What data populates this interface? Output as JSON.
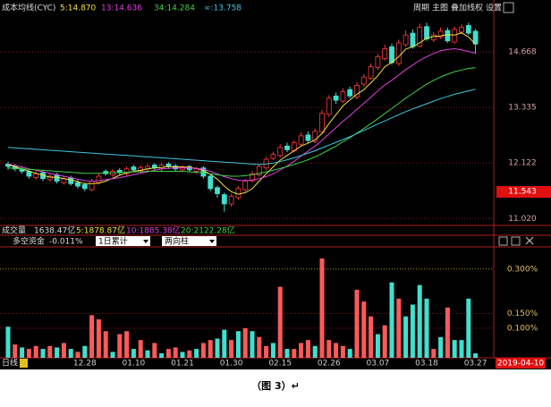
{
  "chart_data": [
    {
      "type": "candlestick",
      "title": "成本均线(CYC)",
      "log": true,
      "ylim": [
        10.89,
        15.89
      ],
      "yticks": [
        {
          "value": 11.02,
          "label": "11.020"
        },
        12.122,
        13.335,
        14.668
      ],
      "last_price": 11.543,
      "up_color": "#ff3b3b",
      "down_color": "#3fdfd0",
      "open": [
        12.1,
        12.05,
        12.0,
        11.95,
        11.82,
        11.92,
        11.78,
        11.88,
        11.72,
        11.82,
        11.72,
        11.68,
        11.58,
        11.72,
        11.95,
        11.88,
        11.97,
        11.9,
        12.04,
        11.96,
        12.0,
        12.08,
        12.0,
        12.1,
        12.06,
        11.98,
        12.05,
        11.95,
        12.02,
        11.85,
        11.62,
        11.48,
        11.3,
        11.42,
        11.58,
        11.76,
        11.88,
        12.02,
        12.22,
        12.28,
        12.48,
        12.38,
        12.52,
        12.72,
        12.58,
        12.78,
        13.18,
        13.6,
        13.48,
        13.75,
        13.58,
        13.88,
        14.02,
        14.28,
        14.5,
        14.8,
        14.38,
        14.85,
        15.15,
        14.82,
        15.32,
        14.98,
        15.05,
        15.22,
        14.92,
        15.18,
        15.35,
        15.2
      ],
      "high": [
        12.15,
        12.1,
        12.05,
        11.98,
        11.95,
        11.96,
        11.9,
        11.92,
        11.85,
        11.86,
        11.78,
        11.72,
        11.8,
        11.9,
        11.99,
        12.0,
        12.02,
        12.05,
        12.08,
        12.08,
        12.1,
        12.12,
        12.12,
        12.14,
        12.1,
        12.08,
        12.08,
        12.04,
        12.06,
        11.9,
        11.66,
        11.52,
        11.5,
        11.65,
        11.8,
        11.95,
        12.1,
        12.25,
        12.36,
        12.52,
        12.55,
        12.6,
        12.78,
        12.8,
        12.86,
        13.28,
        13.62,
        13.68,
        13.78,
        13.82,
        13.92,
        14.12,
        14.38,
        14.62,
        14.85,
        14.88,
        14.98,
        15.22,
        15.25,
        15.4,
        15.42,
        15.18,
        15.3,
        15.3,
        15.32,
        15.38,
        15.42,
        15.26
      ],
      "low": [
        11.98,
        11.95,
        11.9,
        11.8,
        11.78,
        11.75,
        11.74,
        11.7,
        11.68,
        11.66,
        11.6,
        11.55,
        11.55,
        11.68,
        11.86,
        11.84,
        11.88,
        11.86,
        11.94,
        11.92,
        11.96,
        11.98,
        11.96,
        12.0,
        11.96,
        11.94,
        11.94,
        11.9,
        11.8,
        11.55,
        11.42,
        11.15,
        11.25,
        11.38,
        11.54,
        11.72,
        11.84,
        11.98,
        12.18,
        12.24,
        12.35,
        12.34,
        12.48,
        12.55,
        12.54,
        12.74,
        13.12,
        13.42,
        13.44,
        13.55,
        13.52,
        13.82,
        13.98,
        14.22,
        14.45,
        14.35,
        14.32,
        14.8,
        14.75,
        14.78,
        14.95,
        14.92,
        15.0,
        14.9,
        14.88,
        15.12,
        15.1,
        14.62
      ],
      "close": [
        12.05,
        12.0,
        11.95,
        11.85,
        11.9,
        11.8,
        11.85,
        11.75,
        11.8,
        11.7,
        11.65,
        11.6,
        11.75,
        11.85,
        11.9,
        11.95,
        11.92,
        12.0,
        11.98,
        12.03,
        12.05,
        12.02,
        12.08,
        12.05,
        12.0,
        12.04,
        11.98,
        12.0,
        11.85,
        11.6,
        11.5,
        11.3,
        11.45,
        11.6,
        11.75,
        11.9,
        12.05,
        12.2,
        12.3,
        12.45,
        12.4,
        12.55,
        12.7,
        12.6,
        12.8,
        13.2,
        13.55,
        13.5,
        13.7,
        13.6,
        13.85,
        14.05,
        14.3,
        14.55,
        14.75,
        14.4,
        14.9,
        15.1,
        14.8,
        15.3,
        15.0,
        15.1,
        15.2,
        14.95,
        15.25,
        15.3,
        15.15,
        14.87
      ],
      "series": [
        {
          "name": "5:14.870",
          "color": "#f0e040",
          "values": [
            12.08,
            12.05,
            12.0,
            11.95,
            11.91,
            11.87,
            11.83,
            11.83,
            11.8,
            11.78,
            11.74,
            11.7,
            11.7,
            11.71,
            11.75,
            11.81,
            11.87,
            11.92,
            11.95,
            11.97,
            12.0,
            12.02,
            12.03,
            12.05,
            12.04,
            12.04,
            12.03,
            12.01,
            11.97,
            11.89,
            11.79,
            11.65,
            11.54,
            11.49,
            11.52,
            11.6,
            11.75,
            11.9,
            12.04,
            12.18,
            12.28,
            12.38,
            12.48,
            12.54,
            12.61,
            12.75,
            12.97,
            13.17,
            13.37,
            13.51,
            13.64,
            13.75,
            13.91,
            14.08,
            14.3,
            14.41,
            14.55,
            14.74,
            14.8,
            14.9,
            15.02,
            15.06,
            15.08,
            15.11,
            15.1,
            15.16,
            15.05,
            14.87
          ]
        },
        {
          "name": "13:14.636",
          "color": "#e040e0",
          "values": [
            12.1,
            12.07,
            12.04,
            12.0,
            11.97,
            11.94,
            11.91,
            11.88,
            11.85,
            11.82,
            11.79,
            11.76,
            11.75,
            11.76,
            11.78,
            11.8,
            11.82,
            11.85,
            11.88,
            11.91,
            11.94,
            11.97,
            12.0,
            12.01,
            12.02,
            12.02,
            12.02,
            12.01,
            11.99,
            11.95,
            11.9,
            11.84,
            11.8,
            11.77,
            11.76,
            11.77,
            11.8,
            11.84,
            11.9,
            11.98,
            12.06,
            12.16,
            12.27,
            12.37,
            12.48,
            12.6,
            12.74,
            12.88,
            13.02,
            13.15,
            13.29,
            13.43,
            13.57,
            13.72,
            13.86,
            13.97,
            14.1,
            14.23,
            14.34,
            14.46,
            14.55,
            14.63,
            14.7,
            14.73,
            14.75,
            14.72,
            14.68,
            14.64
          ]
        },
        {
          "name": "34:14.284",
          "color": "#40d040",
          "values": [
            12.02,
            12.01,
            12.0,
            11.99,
            11.98,
            11.97,
            11.96,
            11.95,
            11.94,
            11.93,
            11.92,
            11.91,
            11.91,
            11.91,
            11.92,
            11.92,
            11.93,
            11.93,
            11.94,
            11.94,
            11.95,
            11.95,
            11.95,
            11.95,
            11.95,
            11.95,
            11.94,
            11.93,
            11.92,
            11.9,
            11.88,
            11.86,
            11.85,
            11.85,
            11.86,
            11.88,
            11.91,
            11.94,
            11.97,
            12.01,
            12.05,
            12.09,
            12.14,
            12.19,
            12.25,
            12.32,
            12.4,
            12.48,
            12.57,
            12.66,
            12.76,
            12.86,
            12.97,
            13.08,
            13.2,
            13.31,
            13.43,
            13.55,
            13.66,
            13.77,
            13.88,
            13.97,
            14.05,
            14.12,
            14.18,
            14.22,
            14.26,
            14.28
          ]
        },
        {
          "name": "∞:13.758",
          "color": "#40c8e0",
          "values": [
            12.45,
            12.44,
            12.43,
            12.42,
            12.41,
            12.4,
            12.39,
            12.38,
            12.37,
            12.36,
            12.35,
            12.34,
            12.33,
            12.32,
            12.31,
            12.3,
            12.29,
            12.28,
            12.27,
            12.26,
            12.25,
            12.24,
            12.23,
            12.22,
            12.21,
            12.2,
            12.19,
            12.18,
            12.17,
            12.16,
            12.15,
            12.14,
            12.13,
            12.12,
            12.11,
            12.1,
            12.09,
            12.1,
            12.12,
            12.15,
            12.19,
            12.23,
            12.28,
            12.33,
            12.38,
            12.44,
            12.5,
            12.56,
            12.62,
            12.68,
            12.75,
            12.82,
            12.89,
            12.96,
            13.03,
            13.1,
            13.17,
            13.24,
            13.3,
            13.36,
            13.42,
            13.48,
            13.54,
            13.59,
            13.64,
            13.68,
            13.72,
            13.76
          ]
        }
      ]
    },
    {
      "type": "bar",
      "title": "多空资金",
      "categories": [
        null,
        null,
        null,
        null,
        null,
        null,
        null,
        null,
        null,
        null,
        null,
        "12.28",
        null,
        null,
        null,
        null,
        null,
        null,
        "01.10",
        null,
        null,
        null,
        null,
        null,
        null,
        "01.21",
        null,
        null,
        null,
        null,
        null,
        null,
        "01.30",
        null,
        null,
        null,
        null,
        null,
        null,
        "02.15",
        null,
        null,
        null,
        null,
        null,
        null,
        "02.26",
        null,
        null,
        null,
        null,
        null,
        null,
        "03.07",
        null,
        null,
        null,
        null,
        null,
        null,
        "03.18",
        null,
        null,
        null,
        null,
        null,
        null,
        "03.27"
      ],
      "values": [
        0.105,
        0.045,
        0.035,
        0.03,
        0.04,
        0.03,
        0.04,
        0.035,
        0.05,
        0.03,
        0.02,
        0.04,
        0.144,
        0.13,
        0.09,
        0.02,
        0.08,
        0.09,
        0.03,
        0.06,
        0.025,
        0.05,
        0.015,
        0.03,
        0.035,
        0.02,
        0.025,
        0.03,
        0.05,
        0.06,
        0.065,
        0.095,
        0.06,
        0.09,
        0.1,
        0.09,
        0.07,
        0.04,
        0.05,
        0.24,
        0.03,
        0.03,
        0.05,
        0.06,
        0.04,
        0.336,
        0.06,
        0.05,
        0.04,
        0.03,
        0.23,
        0.19,
        0.14,
        0.08,
        0.11,
        0.255,
        0.2,
        0.14,
        0.18,
        0.246,
        0.2,
        0.03,
        0.07,
        0.17,
        0.06,
        0.06,
        0.2,
        0.015
      ],
      "palette": [
        "#ff5a5a",
        "#3fe0d0"
      ],
      "color_index": [
        1,
        0,
        1,
        0,
        0,
        1,
        0,
        1,
        0,
        1,
        0,
        1,
        0,
        0,
        0,
        1,
        0,
        0,
        1,
        0,
        1,
        0,
        1,
        0,
        0,
        1,
        0,
        1,
        0,
        0,
        1,
        1,
        0,
        1,
        0,
        1,
        0,
        0,
        1,
        0,
        1,
        0,
        0,
        0,
        1,
        0,
        0,
        0,
        0,
        1,
        0,
        0,
        0,
        1,
        0,
        1,
        0,
        1,
        1,
        1,
        1,
        0,
        1,
        0,
        1,
        1,
        1,
        1
      ],
      "ylim": [
        0,
        0.375
      ],
      "yticks": [
        {
          "value": 0.1,
          "label": "0.100%"
        },
        {
          "value": 0.15,
          "label": "0.150%"
        },
        {
          "value": 0.3,
          "label": "0.300%"
        }
      ],
      "grid": true
    }
  ],
  "ui": {
    "toolbar": [
      "周期",
      "主图",
      "叠加线",
      "权",
      "设置"
    ],
    "volume": {
      "label": "成交量",
      "value": "1638.47亿",
      "ma": [
        {
          "text": "5:1878.87亿",
          "color": "#f0e040"
        },
        {
          "text": "10:1885.38亿",
          "color": "#e040e0"
        },
        {
          "text": "20:2122.28亿",
          "color": "#40d040"
        }
      ]
    },
    "indicator": {
      "value": "-0.011%",
      "dropdowns": [
        "1日累计",
        "两向柱"
      ]
    },
    "period": "日线",
    "date": "2019-04-10",
    "caption": "（图 3）↵"
  }
}
